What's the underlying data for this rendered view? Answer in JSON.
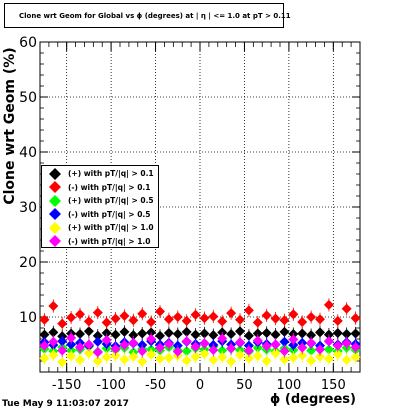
{
  "title": "Clone wrt Geom for Global vs ϕ (degrees) at | η | <= 1.0 at pT > 0.11",
  "timestamp": "Tue May  9 11:03:07 2017",
  "chart_data": {
    "type": "scatter",
    "title": "Clone wrt Geom for Global vs ϕ (degrees) at | η | <= 1.0 at pT > 0.11",
    "xlabel": "ϕ (degrees)",
    "ylabel": "Clone wrt Geom (%)",
    "xlim": [
      -180,
      180
    ],
    "ylim": [
      0,
      60
    ],
    "xticks": [
      -150,
      -100,
      -50,
      0,
      50,
      100,
      150
    ],
    "yticks": [
      0,
      10,
      20,
      30,
      40,
      50,
      60
    ],
    "ytick_labels": [
      "",
      "10",
      "20",
      "30",
      "40",
      "50",
      "60"
    ],
    "grid": true,
    "legend_position": "middle-left",
    "x": [
      -175,
      -165,
      -155,
      -145,
      -135,
      -125,
      -115,
      -105,
      -95,
      -85,
      -75,
      -65,
      -55,
      -45,
      -35,
      -25,
      -15,
      -5,
      5,
      15,
      25,
      35,
      45,
      55,
      65,
      75,
      85,
      95,
      105,
      115,
      125,
      135,
      145,
      155,
      165,
      175
    ],
    "series": [
      {
        "name": "(+) with pT/|q| > 0.1",
        "color": "#000000",
        "values": [
          6.8,
          7.2,
          6.5,
          7.0,
          6.9,
          7.4,
          6.6,
          7.1,
          6.8,
          7.3,
          6.7,
          7.0,
          7.2,
          6.6,
          7.1,
          6.9,
          7.3,
          6.8,
          7.0,
          6.7,
          7.2,
          6.9,
          7.4,
          6.6,
          7.0,
          7.1,
          6.8,
          7.3,
          6.9,
          7.0,
          6.7,
          7.2,
          6.8,
          7.1,
          6.9,
          7.0
        ]
      },
      {
        "name": "(-) with pT/|q| > 0.1",
        "color": "#ff0000",
        "values": [
          9.5,
          12.0,
          8.8,
          9.9,
          10.5,
          9.2,
          10.8,
          9.0,
          9.7,
          10.2,
          9.4,
          10.6,
          9.1,
          11.0,
          9.6,
          10.0,
          9.3,
          10.4,
          9.8,
          10.1,
          9.2,
          10.7,
          9.5,
          11.2,
          9.0,
          10.3,
          9.7,
          9.4,
          10.5,
          9.1,
          10.0,
          9.6,
          12.2,
          9.3,
          11.5,
          9.8
        ]
      },
      {
        "name": "(+) with pT/|q| > 0.5",
        "color": "#00ff00",
        "values": [
          4.2,
          3.8,
          4.5,
          3.9,
          4.1,
          4.6,
          3.7,
          4.3,
          4.0,
          4.4,
          3.6,
          4.2,
          4.1,
          3.9,
          4.5,
          4.0,
          3.8,
          4.3,
          4.1,
          4.6,
          3.9,
          4.2,
          4.0,
          3.7,
          4.4,
          4.1,
          3.8,
          4.3,
          4.0,
          4.5,
          3.9,
          4.2,
          4.1,
          3.8,
          4.4,
          4.0
        ]
      },
      {
        "name": "(-) with pT/|q| > 0.5",
        "color": "#0000ff",
        "values": [
          5.4,
          4.9,
          5.6,
          5.0,
          5.3,
          4.8,
          5.5,
          5.1,
          4.7,
          5.4,
          5.2,
          4.9,
          5.6,
          5.0,
          5.3,
          4.8,
          5.5,
          5.1,
          5.2,
          4.9,
          5.6,
          5.0,
          5.3,
          4.8,
          5.4,
          5.1,
          5.0,
          5.5,
          4.9,
          5.3,
          5.2,
          4.8,
          5.6,
          5.0,
          5.4,
          5.1
        ]
      },
      {
        "name": "(+) with pT/|q| > 1.0",
        "color": "#ffff00",
        "values": [
          2.5,
          3.1,
          1.8,
          2.9,
          2.2,
          3.4,
          2.0,
          2.7,
          3.0,
          2.3,
          2.8,
          1.9,
          3.2,
          2.4,
          2.6,
          3.0,
          2.1,
          2.8,
          3.3,
          2.2,
          2.7,
          1.9,
          3.1,
          2.5,
          2.9,
          2.0,
          3.4,
          2.3,
          2.6,
          3.0,
          2.1,
          2.8,
          2.4,
          3.2,
          2.2,
          2.7
        ]
      },
      {
        "name": "(-) with pT/|q| > 1.0",
        "color": "#ff00ff",
        "values": [
          4.8,
          5.5,
          3.9,
          6.2,
          4.5,
          5.0,
          3.6,
          5.8,
          4.2,
          4.9,
          5.3,
          3.8,
          6.0,
          4.4,
          5.1,
          3.7,
          5.6,
          4.6,
          5.2,
          4.0,
          6.1,
          4.3,
          5.4,
          3.9,
          5.7,
          4.7,
          5.0,
          3.8,
          5.9,
          4.4,
          5.3,
          4.1,
          5.6,
          4.8,
          5.2,
          4.5
        ]
      }
    ]
  }
}
